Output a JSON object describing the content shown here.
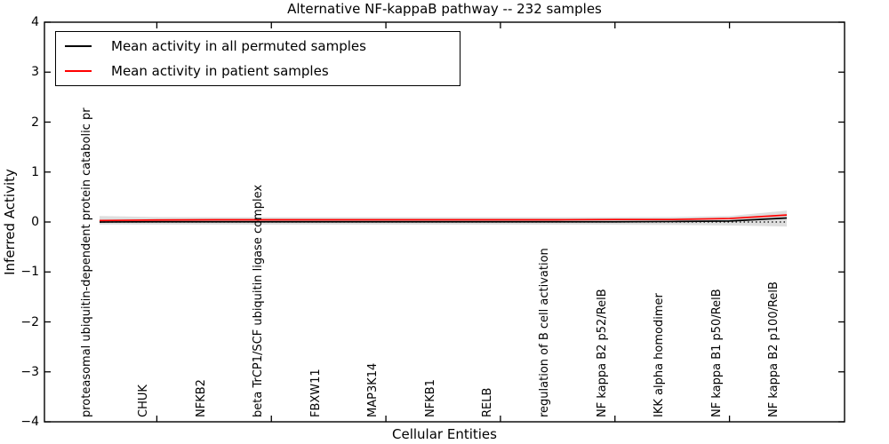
{
  "title": "Alternative NF-kappaB pathway -- 232 samples",
  "axes": {
    "xlabel": "Cellular Entities",
    "ylabel": "Inferred Activity",
    "yticks": [
      4,
      3,
      2,
      1,
      0,
      -1,
      -2,
      -3,
      -4
    ]
  },
  "legend": {
    "items": [
      {
        "label": "Mean activity in all permuted samples",
        "color": "#000000"
      },
      {
        "label": "Mean activity in patient samples",
        "color": "#ff0000"
      }
    ]
  },
  "chart_data": {
    "type": "line",
    "title": "Alternative NF-kappaB pathway -- 232 samples",
    "xlabel": "Cellular Entities",
    "ylabel": "Inferred Activity",
    "ylim": [
      -4,
      4
    ],
    "grid": false,
    "legend_position": "upper left",
    "categories": [
      "proteasomal ubiquitin-dependent protein catabolic pr",
      "CHUK",
      "NFKB2",
      "beta TrCP1/SCF ubiquitin ligase complex",
      "FBXW11",
      "MAP3K14",
      "NFKB1",
      "RELB",
      "regulation of B cell activation",
      "NF kappa B2 p52/RelB",
      "IKK alpha homodimer",
      "NF kappa B1 p50/RelB",
      "NF kappa B2 p100/RelB"
    ],
    "series": [
      {
        "name": "Mean activity in all permuted samples",
        "color": "#000000",
        "values": [
          0.0,
          0.005,
          0.005,
          0.005,
          0.005,
          0.005,
          0.005,
          0.005,
          0.005,
          0.005,
          0.01,
          0.02,
          0.08
        ]
      },
      {
        "name": "Mean activity in patient samples",
        "color": "#ff0000",
        "values": [
          0.03,
          0.04,
          0.045,
          0.045,
          0.045,
          0.045,
          0.045,
          0.045,
          0.045,
          0.05,
          0.05,
          0.07,
          0.14
        ]
      }
    ],
    "band": {
      "upper": [
        0.12,
        0.1,
        0.095,
        0.095,
        0.095,
        0.095,
        0.095,
        0.095,
        0.095,
        0.095,
        0.1,
        0.12,
        0.23
      ],
      "lower": [
        -0.05,
        -0.055,
        -0.055,
        -0.055,
        -0.055,
        -0.055,
        -0.055,
        -0.055,
        -0.055,
        -0.055,
        -0.06,
        -0.07,
        -0.09
      ],
      "color": "rgba(0,0,0,0.13)"
    },
    "zero_line": {
      "y": 0,
      "style": "dotted",
      "color": "#000000"
    },
    "x_tick_indices": [
      1,
      3,
      5,
      7,
      9,
      11
    ]
  },
  "colors": {
    "frame": "#000000",
    "background": "#ffffff",
    "permuted_line": "#000000",
    "patient_line": "#ff0000"
  }
}
